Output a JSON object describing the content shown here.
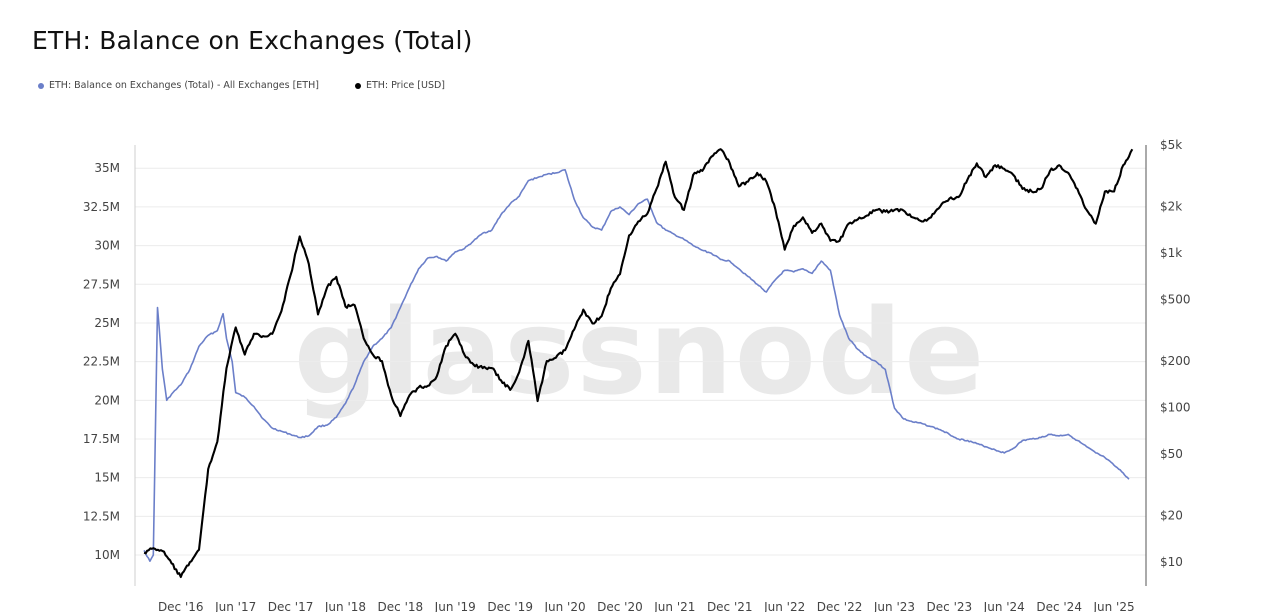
{
  "title": "ETH: Balance on Exchanges (Total)",
  "watermark": "glassnode",
  "legend": [
    {
      "label": "ETH: Balance on Exchanges (Total) - All Exchanges [ETH]",
      "color": "#6b7fc9"
    },
    {
      "label": "ETH: Price [USD]",
      "color": "#000000"
    }
  ],
  "chart_data": {
    "type": "line",
    "title": "ETH: Balance on Exchanges (Total)",
    "x_ticks": [
      "Dec '16",
      "Jun '17",
      "Dec '17",
      "Jun '18",
      "Dec '18",
      "Jun '19",
      "Dec '19",
      "Jun '20",
      "Dec '20",
      "Jun '21",
      "Dec '21",
      "Jun '22",
      "Dec '22",
      "Jun '23",
      "Dec '23",
      "Jun '24",
      "Dec '24",
      "Jun '25"
    ],
    "y_left": {
      "ticks": [
        "10M",
        "12.5M",
        "15M",
        "17.5M",
        "20M",
        "22.5M",
        "25M",
        "27.5M",
        "30M",
        "32.5M",
        "35M"
      ],
      "range": [
        8.0,
        36.5
      ],
      "unit": "M ETH"
    },
    "y_right": {
      "ticks": [
        "$10",
        "$20",
        "$50",
        "$100",
        "$200",
        "$500",
        "$1k",
        "$2k",
        "$5k"
      ],
      "scale": "log",
      "range": [
        7,
        5000
      ],
      "unit": "USD"
    },
    "grid": "horizontal",
    "series": [
      {
        "name": "ETH: Balance on Exchanges (Total) - All Exchanges [ETH]",
        "color": "#6b7fc9",
        "axis": "left",
        "points": [
          [
            "2016-08",
            10.3
          ],
          [
            "2016-08-20",
            9.6
          ],
          [
            "2016-09",
            10.0
          ],
          [
            "2016-09-15",
            26.0
          ],
          [
            "2016-10",
            22.0
          ],
          [
            "2016-10-15",
            20.0
          ],
          [
            "2016-11",
            20.4
          ],
          [
            "2016-12",
            21.0
          ],
          [
            "2017-01",
            22.0
          ],
          [
            "2017-02",
            23.5
          ],
          [
            "2017-03",
            24.2
          ],
          [
            "2017-04",
            24.5
          ],
          [
            "2017-04-20",
            25.6
          ],
          [
            "2017-05",
            24.0
          ],
          [
            "2017-05-20",
            22.5
          ],
          [
            "2017-06",
            20.5
          ],
          [
            "2017-07",
            20.2
          ],
          [
            "2017-08",
            19.6
          ],
          [
            "2017-09",
            18.8
          ],
          [
            "2017-10",
            18.2
          ],
          [
            "2017-11",
            18.0
          ],
          [
            "2017-12",
            17.8
          ],
          [
            "2018-01",
            17.6
          ],
          [
            "2018-02",
            17.7
          ],
          [
            "2018-03",
            18.3
          ],
          [
            "2018-04",
            18.4
          ],
          [
            "2018-05",
            18.9
          ],
          [
            "2018-06",
            19.8
          ],
          [
            "2018-07",
            21.0
          ],
          [
            "2018-08",
            22.5
          ],
          [
            "2018-09",
            23.5
          ],
          [
            "2018-10",
            24.0
          ],
          [
            "2018-11",
            24.7
          ],
          [
            "2018-12",
            26.0
          ],
          [
            "2019-01",
            27.3
          ],
          [
            "2019-02",
            28.5
          ],
          [
            "2019-03",
            29.2
          ],
          [
            "2019-04",
            29.3
          ],
          [
            "2019-05",
            29.0
          ],
          [
            "2019-06",
            29.6
          ],
          [
            "2019-07",
            29.8
          ],
          [
            "2019-08",
            30.3
          ],
          [
            "2019-09",
            30.8
          ],
          [
            "2019-10",
            31.0
          ],
          [
            "2019-11",
            32.0
          ],
          [
            "2019-12",
            32.7
          ],
          [
            "2020-01",
            33.2
          ],
          [
            "2020-02",
            34.2
          ],
          [
            "2020-03",
            34.4
          ],
          [
            "2020-04",
            34.6
          ],
          [
            "2020-05",
            34.7
          ],
          [
            "2020-06",
            34.9
          ],
          [
            "2020-07",
            33.0
          ],
          [
            "2020-08",
            31.8
          ],
          [
            "2020-09",
            31.2
          ],
          [
            "2020-10",
            31.0
          ],
          [
            "2020-11",
            32.2
          ],
          [
            "2020-12",
            32.5
          ],
          [
            "2021-01",
            32.0
          ],
          [
            "2021-02",
            32.7
          ],
          [
            "2021-03",
            33.0
          ],
          [
            "2021-04",
            31.5
          ],
          [
            "2021-05",
            31.0
          ],
          [
            "2021-06",
            30.7
          ],
          [
            "2021-07",
            30.4
          ],
          [
            "2021-08",
            30.0
          ],
          [
            "2021-09",
            29.7
          ],
          [
            "2021-10",
            29.5
          ],
          [
            "2021-11",
            29.1
          ],
          [
            "2021-12",
            29.0
          ],
          [
            "2022-01",
            28.5
          ],
          [
            "2022-02",
            28.0
          ],
          [
            "2022-03",
            27.5
          ],
          [
            "2022-04",
            27.0
          ],
          [
            "2022-05",
            27.8
          ],
          [
            "2022-06",
            28.4
          ],
          [
            "2022-07",
            28.3
          ],
          [
            "2022-08",
            28.5
          ],
          [
            "2022-09",
            28.2
          ],
          [
            "2022-10",
            29.0
          ],
          [
            "2022-11",
            28.4
          ],
          [
            "2022-12",
            25.5
          ],
          [
            "2023-01",
            24.0
          ],
          [
            "2023-02",
            23.3
          ],
          [
            "2023-03",
            22.8
          ],
          [
            "2023-04",
            22.5
          ],
          [
            "2023-05",
            22.0
          ],
          [
            "2023-06",
            19.5
          ],
          [
            "2023-07",
            18.8
          ],
          [
            "2023-08",
            18.6
          ],
          [
            "2023-09",
            18.5
          ],
          [
            "2023-10",
            18.3
          ],
          [
            "2023-11",
            18.1
          ],
          [
            "2023-12",
            17.8
          ],
          [
            "2024-01",
            17.5
          ],
          [
            "2024-02",
            17.4
          ],
          [
            "2024-03",
            17.2
          ],
          [
            "2024-04",
            17.0
          ],
          [
            "2024-05",
            16.8
          ],
          [
            "2024-06",
            16.6
          ],
          [
            "2024-07",
            16.9
          ],
          [
            "2024-08",
            17.4
          ],
          [
            "2024-09",
            17.5
          ],
          [
            "2024-10",
            17.6
          ],
          [
            "2024-11",
            17.8
          ],
          [
            "2024-12",
            17.7
          ],
          [
            "2025-01",
            17.8
          ],
          [
            "2025-02",
            17.4
          ],
          [
            "2025-03",
            17.0
          ],
          [
            "2025-04",
            16.6
          ],
          [
            "2025-05",
            16.3
          ],
          [
            "2025-06",
            15.8
          ],
          [
            "2025-07",
            15.3
          ],
          [
            "2025-07-20",
            14.9
          ]
        ]
      },
      {
        "name": "ETH: Price [USD]",
        "color": "#000000",
        "axis": "right",
        "points": [
          [
            "2016-08",
            11.5
          ],
          [
            "2016-09",
            12.3
          ],
          [
            "2016-10",
            11.8
          ],
          [
            "2016-11",
            9.8
          ],
          [
            "2016-12",
            8.0
          ],
          [
            "2017-01",
            10.0
          ],
          [
            "2017-02",
            12.0
          ],
          [
            "2017-03",
            40.0
          ],
          [
            "2017-04",
            60.0
          ],
          [
            "2017-05",
            180.0
          ],
          [
            "2017-06",
            330.0
          ],
          [
            "2017-07",
            220.0
          ],
          [
            "2017-08",
            300.0
          ],
          [
            "2017-09",
            290.0
          ],
          [
            "2017-10",
            300.0
          ],
          [
            "2017-11",
            420.0
          ],
          [
            "2017-12",
            720.0
          ],
          [
            "2018-01",
            1280.0
          ],
          [
            "2018-02",
            850.0
          ],
          [
            "2018-03",
            400.0
          ],
          [
            "2018-04",
            600.0
          ],
          [
            "2018-05",
            700.0
          ],
          [
            "2018-06",
            450.0
          ],
          [
            "2018-07",
            460.0
          ],
          [
            "2018-08",
            280.0
          ],
          [
            "2018-09",
            220.0
          ],
          [
            "2018-10",
            200.0
          ],
          [
            "2018-11",
            120.0
          ],
          [
            "2018-12",
            88.0
          ],
          [
            "2019-01",
            120.0
          ],
          [
            "2019-02",
            135.0
          ],
          [
            "2019-03",
            138.0
          ],
          [
            "2019-04",
            160.0
          ],
          [
            "2019-05",
            250.0
          ],
          [
            "2019-06",
            300.0
          ],
          [
            "2019-07",
            220.0
          ],
          [
            "2019-08",
            190.0
          ],
          [
            "2019-09",
            180.0
          ],
          [
            "2019-10",
            180.0
          ],
          [
            "2019-11",
            150.0
          ],
          [
            "2019-12",
            130.0
          ],
          [
            "2020-01",
            170.0
          ],
          [
            "2020-02",
            270.0
          ],
          [
            "2020-03",
            110.0
          ],
          [
            "2020-04",
            200.0
          ],
          [
            "2020-05",
            210.0
          ],
          [
            "2020-06",
            235.0
          ],
          [
            "2020-07",
            320.0
          ],
          [
            "2020-08",
            430.0
          ],
          [
            "2020-09",
            350.0
          ],
          [
            "2020-10",
            390.0
          ],
          [
            "2020-11",
            590.0
          ],
          [
            "2020-12",
            730.0
          ],
          [
            "2021-01",
            1300.0
          ],
          [
            "2021-02",
            1600.0
          ],
          [
            "2021-03",
            1800.0
          ],
          [
            "2021-04",
            2600.0
          ],
          [
            "2021-05",
            3900.0
          ],
          [
            "2021-06",
            2300.0
          ],
          [
            "2021-07",
            1900.0
          ],
          [
            "2021-08",
            3200.0
          ],
          [
            "2021-09",
            3400.0
          ],
          [
            "2021-10",
            4200.0
          ],
          [
            "2021-11",
            4700.0
          ],
          [
            "2021-12",
            3800.0
          ],
          [
            "2022-01",
            2700.0
          ],
          [
            "2022-02",
            2900.0
          ],
          [
            "2022-03",
            3300.0
          ],
          [
            "2022-04",
            2900.0
          ],
          [
            "2022-05",
            1900.0
          ],
          [
            "2022-06",
            1050.0
          ],
          [
            "2022-07",
            1500.0
          ],
          [
            "2022-08",
            1700.0
          ],
          [
            "2022-09",
            1350.0
          ],
          [
            "2022-10",
            1550.0
          ],
          [
            "2022-11",
            1200.0
          ],
          [
            "2022-12",
            1200.0
          ],
          [
            "2023-01",
            1550.0
          ],
          [
            "2023-02",
            1650.0
          ],
          [
            "2023-03",
            1750.0
          ],
          [
            "2023-04",
            1900.0
          ],
          [
            "2023-05",
            1850.0
          ],
          [
            "2023-06",
            1900.0
          ],
          [
            "2023-07",
            1880.0
          ],
          [
            "2023-08",
            1700.0
          ],
          [
            "2023-09",
            1600.0
          ],
          [
            "2023-10",
            1700.0
          ],
          [
            "2023-11",
            2000.0
          ],
          [
            "2023-12",
            2250.0
          ],
          [
            "2024-01",
            2300.0
          ],
          [
            "2024-02",
            3000.0
          ],
          [
            "2024-03",
            3800.0
          ],
          [
            "2024-04",
            3100.0
          ],
          [
            "2024-05",
            3700.0
          ],
          [
            "2024-06",
            3500.0
          ],
          [
            "2024-07",
            3200.0
          ],
          [
            "2024-08",
            2600.0
          ],
          [
            "2024-09",
            2500.0
          ],
          [
            "2024-10",
            2600.0
          ],
          [
            "2024-11",
            3400.0
          ],
          [
            "2024-12",
            3700.0
          ],
          [
            "2025-01",
            3300.0
          ],
          [
            "2025-02",
            2600.0
          ],
          [
            "2025-03",
            1900.0
          ],
          [
            "2025-04",
            1550.0
          ],
          [
            "2025-05",
            2500.0
          ],
          [
            "2025-06",
            2500.0
          ],
          [
            "2025-07",
            3700.0
          ],
          [
            "2025-07-20",
            4200.0
          ],
          [
            "2025-08",
            4700.0
          ]
        ]
      }
    ]
  }
}
